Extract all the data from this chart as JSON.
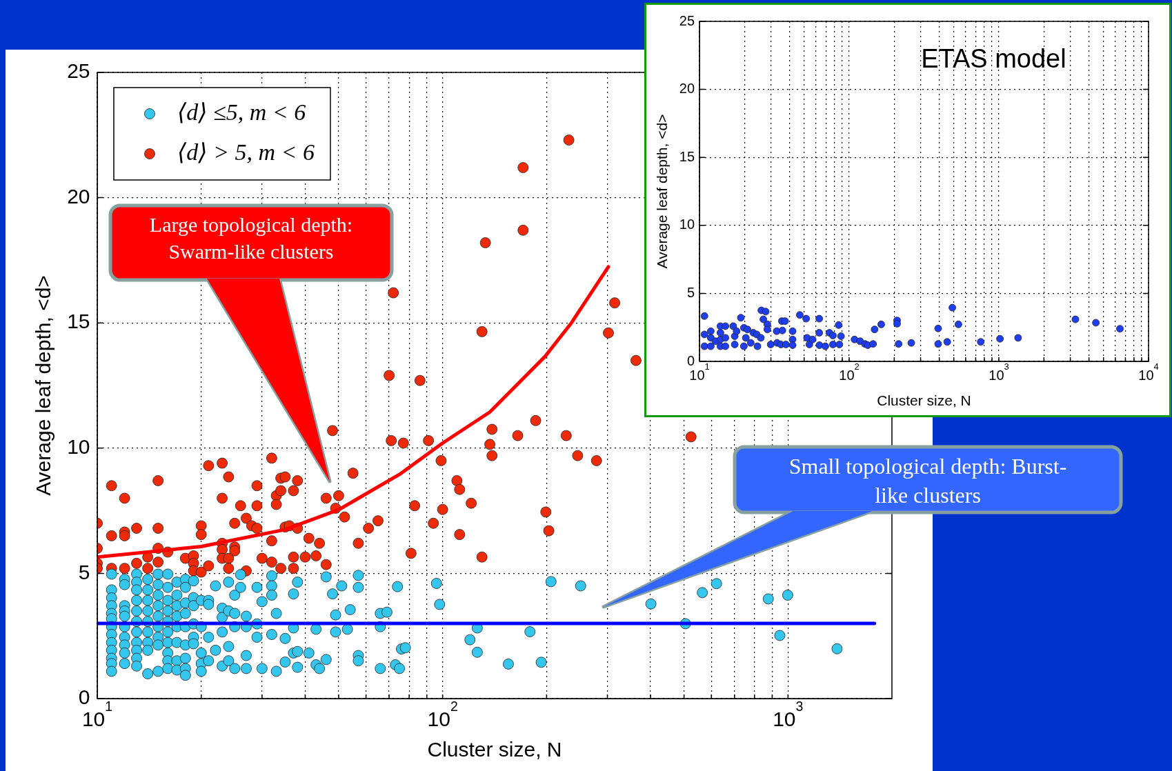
{
  "chart_data": [
    {
      "type": "scatter",
      "xlabel": "Cluster size, N",
      "ylabel": "Average leaf depth, <d>",
      "log": "x",
      "grid": true,
      "legend": "top left",
      "marker": "circle",
      "xlim": [
        10,
        2000
      ],
      "ylim": [
        0,
        25
      ],
      "xticks": [
        {
          "value": 10,
          "label": "10$^{1}$"
        },
        {
          "value": 20,
          "label": null
        },
        {
          "value": 30,
          "label": null
        },
        {
          "value": 40,
          "label": null
        },
        {
          "value": 50,
          "label": null
        },
        {
          "value": 60,
          "label": null
        },
        {
          "value": 70,
          "label": null
        },
        {
          "value": 80,
          "label": null
        },
        {
          "value": 90,
          "label": null
        },
        {
          "value": 100,
          "label": "10$^{2}$"
        },
        {
          "value": 200,
          "label": null
        },
        {
          "value": 300,
          "label": null
        },
        {
          "value": 400,
          "label": null
        },
        {
          "value": 500,
          "label": null
        },
        {
          "value": 600,
          "label": null
        },
        {
          "value": 700,
          "label": null
        },
        {
          "value": 800,
          "label": null
        },
        {
          "value": 900,
          "label": null
        },
        {
          "value": 1000,
          "label": "10$^{3}$"
        }
      ],
      "yticks": [
        0,
        5,
        10,
        15,
        20,
        25
      ],
      "annotations": [
        "Large topological depth: Swarm-like clusters",
        "Small topological depth: Burst-like clusters"
      ],
      "series": [
        {
          "name": "⟨d⟩ ≤5, m < 6",
          "color": "#35c6ee",
          "x": [
            11,
            11,
            11,
            11,
            11,
            11,
            11,
            11,
            11,
            11,
            11,
            11,
            11,
            12,
            12,
            12,
            12,
            12,
            12,
            12,
            12,
            12,
            12,
            13,
            13,
            13,
            13,
            13,
            13,
            13,
            13,
            13,
            13,
            13,
            14,
            14,
            14,
            14,
            14,
            14,
            14,
            14,
            14,
            15,
            15,
            15,
            15,
            15,
            15,
            15,
            15,
            15,
            16,
            16,
            16,
            16,
            16,
            16,
            16,
            16,
            16,
            16,
            17,
            17,
            17,
            17,
            17,
            17,
            17,
            17,
            18,
            18,
            18,
            18,
            18,
            18,
            18,
            18,
            18,
            19,
            19,
            19,
            19,
            19,
            19,
            20,
            20,
            20,
            20,
            20,
            21,
            21,
            21,
            21,
            22,
            22,
            23,
            23,
            23,
            23,
            24,
            24,
            24,
            24,
            25,
            25,
            25,
            25,
            26,
            26,
            27,
            27,
            27,
            27,
            29,
            29,
            29,
            30,
            30,
            32,
            32,
            32,
            32,
            33,
            33,
            35,
            35,
            37,
            37,
            37,
            38,
            38,
            38,
            41,
            43,
            43,
            44,
            46,
            46,
            48,
            49,
            49,
            51,
            53,
            54,
            57,
            57,
            57,
            57,
            66,
            66,
            66,
            69,
            73,
            74,
            75,
            76,
            78,
            96,
            98,
            120,
            126,
            126,
            155,
            179,
            193,
            206,
            251,
            401,
            505,
            565,
            621,
            877,
            947,
            998,
            1387
          ],
          "values": [
            4.97,
            4.34,
            4.02,
            3.71,
            3.4,
            3.19,
            2.87,
            2.56,
            2.24,
            1.93,
            1.61,
            1.4,
            1.09,
            4.76,
            4.55,
            3.71,
            3.5,
            3.29,
            2.87,
            2.45,
            2.14,
            1.82,
            1.4,
            4.97,
            4.65,
            4.34,
            3.92,
            3.5,
            3.08,
            2.66,
            2.24,
            1.93,
            1.61,
            1.3,
            4.76,
            4.34,
            3.92,
            3.5,
            3.08,
            2.66,
            2.24,
            1.93,
            0.99,
            4.97,
            4.55,
            4.13,
            3.71,
            3.29,
            2.87,
            2.45,
            2.14,
            1.09,
            4.97,
            4.44,
            3.92,
            3.5,
            3.08,
            2.66,
            2.24,
            1.82,
            1.51,
            1.2,
            4.65,
            4.13,
            3.71,
            3.29,
            2.87,
            2.24,
            1.51,
            1.14,
            4.76,
            4.44,
            3.82,
            3.4,
            2.87,
            2.14,
            1.61,
            1.2,
            0.93,
            4.7,
            4.03,
            3.71,
            2.98,
            2.45,
            2.19,
            3.92,
            2.87,
            1.82,
            1.4,
            1.09,
            3.92,
            3.76,
            2.45,
            1.51,
            4.5,
            1.93,
            3.61,
            3.24,
            2.66,
            1.3,
            4.65,
            3.5,
            2.08,
            1.51,
            4.13,
            3.4,
            2.87,
            1.2,
            4.95,
            4.44,
            3.29,
            2.87,
            1.72,
            1.2,
            4.44,
            2.98,
            2.45,
            3.87,
            1.2,
            4.9,
            4.5,
            4.13,
            2.56,
            3.4,
            1.09,
            2.4,
            1.46,
            4.18,
            2.82,
            1.82,
            4.65,
            1.88,
            1.25,
            1.82,
            2.77,
            1.35,
            1.2,
            4.86,
            1.56,
            4.18,
            3.34,
            2.66,
            4.5,
            2.77,
            3.55,
            4.92,
            4.44,
            1.72,
            1.51,
            3.4,
            2.87,
            1.2,
            3.45,
            1.35,
            4.47,
            1.2,
            1.98,
            2.03,
            4.6,
            3.76,
            2.35,
            2.82,
            1.85,
            1.38,
            2.67,
            1.45,
            4.67,
            4.5,
            3.78,
            2.99,
            4.23,
            4.59,
            3.98,
            2.52,
            4.13,
            1.99
          ]
        },
        {
          "name": "⟨d⟩ > 5, m < 6",
          "color": "#ee2a08",
          "x": [
            11,
            12,
            15,
            21,
            23,
            24,
            32,
            29,
            34,
            35,
            38,
            23,
            26,
            29,
            33,
            34,
            37,
            33,
            55,
            46,
            50,
            49,
            52,
            10,
            11,
            12,
            12,
            13,
            15,
            20,
            20,
            25,
            27,
            28,
            29,
            35,
            36,
            38,
            23,
            23,
            25,
            25,
            32,
            41,
            44,
            10,
            10,
            10,
            11,
            12,
            13,
            14,
            14,
            15,
            15,
            16,
            18,
            19,
            19,
            19,
            20,
            21,
            23,
            24,
            24,
            27,
            30,
            32,
            34,
            37,
            37,
            40,
            43,
            46,
            57,
            61,
            65,
            81,
            83,
            94,
            100,
            110,
            112,
            121,
            112,
            130,
            99,
            139,
            232,
            171,
            171,
            133,
            130,
            302,
            315,
            363,
            72,
            70,
            86,
            48,
            71,
            77,
            91,
            139,
            137,
            165,
            186,
            228,
            246,
            279,
            524,
            199,
            203
          ],
          "values": [
            8.5,
            8.0,
            8.7,
            9.3,
            9.4,
            8.85,
            9.6,
            8.5,
            8.8,
            8.85,
            8.7,
            8.0,
            7.7,
            7.7,
            8.1,
            8.3,
            8.3,
            7.75,
            9.0,
            8.0,
            8.1,
            7.6,
            7.25,
            7.0,
            6.5,
            6.65,
            6.5,
            6.8,
            6.8,
            6.9,
            6.55,
            7.0,
            7.2,
            6.9,
            6.8,
            6.85,
            6.9,
            6.8,
            6.2,
            5.95,
            6.05,
            5.9,
            6.3,
            6.4,
            6.2,
            6.0,
            5.4,
            5.2,
            5.2,
            5.2,
            5.4,
            5.65,
            5.2,
            6.0,
            5.45,
            5.85,
            5.6,
            5.7,
            5.4,
            5.1,
            5.05,
            5.3,
            5.6,
            5.6,
            5.2,
            5.1,
            5.6,
            5.45,
            5.2,
            5.65,
            5.2,
            5.65,
            5.7,
            5.35,
            6.2,
            6.8,
            7.1,
            5.8,
            7.7,
            7.0,
            7.55,
            8.7,
            8.35,
            7.8,
            6.55,
            5.65,
            9.5,
            9.7,
            22.3,
            21.2,
            18.7,
            18.2,
            14.65,
            14.6,
            15.8,
            13.5,
            16.2,
            12.9,
            12.7,
            10.7,
            10.3,
            10.2,
            10.3,
            10.75,
            10.15,
            10.5,
            11.1,
            10.5,
            9.7,
            9.5,
            10.45,
            7.45,
            6.7
          ]
        },
        {
          "type": "line",
          "marker": "none",
          "color": "#ff0000",
          "x": [
            10,
            20,
            35,
            50,
            75,
            100,
            137,
            198,
            236,
            302
          ],
          "values": [
            5.65,
            6.07,
            6.75,
            7.54,
            8.95,
            10.2,
            11.44,
            13.66,
            15.0,
            17.24
          ]
        },
        {
          "type": "line",
          "marker": "none",
          "color": "#0000ff",
          "x": [
            10,
            1780
          ],
          "values": [
            3,
            3
          ]
        }
      ]
    },
    {
      "type": "scatter",
      "title": "ETAS model",
      "xlabel": "Cluster size, N",
      "ylabel": "Average leaf depth, <d>",
      "log": "x",
      "grid": true,
      "marker": "circle",
      "xlim": [
        10,
        10000
      ],
      "ylim": [
        0,
        25
      ],
      "xticks": [
        {
          "value": 10,
          "label": "10$^{1}$"
        },
        {
          "value": 20,
          "label": null
        },
        {
          "value": 30,
          "label": null
        },
        {
          "value": 40,
          "label": null
        },
        {
          "value": 50,
          "label": null
        },
        {
          "value": 60,
          "label": null
        },
        {
          "value": 70,
          "label": null
        },
        {
          "value": 80,
          "label": null
        },
        {
          "value": 90,
          "label": null
        },
        {
          "value": 100,
          "label": "10$^{2}$"
        },
        {
          "value": 200,
          "label": null
        },
        {
          "value": 300,
          "label": null
        },
        {
          "value": 400,
          "label": null
        },
        {
          "value": 500,
          "label": null
        },
        {
          "value": 600,
          "label": null
        },
        {
          "value": 700,
          "label": null
        },
        {
          "value": 800,
          "label": null
        },
        {
          "value": 900,
          "label": null
        },
        {
          "value": 1000,
          "label": "10$^{3}$"
        },
        {
          "value": 2000,
          "label": null
        },
        {
          "value": 3000,
          "label": null
        },
        {
          "value": 4000,
          "label": null
        },
        {
          "value": 5000,
          "label": null
        },
        {
          "value": 6000,
          "label": null
        },
        {
          "value": 7000,
          "label": null
        },
        {
          "value": 8000,
          "label": null
        },
        {
          "value": 9000,
          "label": null
        },
        {
          "value": 10000,
          "label": "10$^{4}$"
        }
      ],
      "yticks": [
        0,
        5,
        10,
        15,
        20,
        25
      ],
      "series": [
        {
          "color": "#1f3ef0",
          "x": [
            10.8,
            10.8,
            10.8,
            11.9,
            11.9,
            11.9,
            12.8,
            13.8,
            13.8,
            13.8,
            13.8,
            14.9,
            14.9,
            14.9,
            16.8,
            17.2,
            17.2,
            17.7,
            18.9,
            19.8,
            20.4,
            19.8,
            20.9,
            22,
            22.9,
            24.4,
            24.1,
            25.7,
            25.9,
            26.7,
            27.7,
            28.4,
            28.4,
            29.9,
            32.8,
            33,
            35,
            35.5,
            35.8,
            37.3,
            37.8,
            41.9,
            41.9,
            41.9,
            46.8,
            51.6,
            52.3,
            54.2,
            57,
            63.1,
            63.1,
            63.3,
            69.3,
            73.8,
            77.9,
            77.9,
            85.1,
            86,
            88.2,
            108.6,
            118.3,
            127.6,
            133.2,
            144.4,
            147.9,
            163.7,
            209,
            209,
            214,
            260,
            393,
            393,
            452,
            489,
            537,
            757,
            1017,
            1344,
            3247,
            4446,
            6440
          ],
          "values": [
            3.33,
            1.98,
            1.11,
            2.22,
            1.73,
            1.11,
            1.48,
            2.59,
            2.1,
            1.61,
            1.11,
            2.59,
            1.73,
            1.11,
            2.59,
            1.85,
            1.24,
            2.22,
            3.21,
            2.47,
            1.73,
            1.11,
            2.35,
            1.36,
            2.1,
            1.11,
            1.98,
            1.73,
            3.75,
            3.09,
            3.66,
            2.72,
            2.35,
            1.24,
            2.22,
            1.36,
            1.24,
            2.96,
            2.27,
            2.96,
            1.24,
            2.22,
            1.61,
            1.19,
            3.41,
            3.14,
            1.73,
            1.24,
            1.61,
            3.14,
            2.1,
            1.19,
            1.11,
            2.1,
            1.9,
            1.24,
            2.67,
            1.24,
            1.85,
            1.61,
            1.48,
            1.28,
            1.19,
            1.28,
            2.35,
            2.72,
            3.01,
            2.77,
            1.28,
            1.36,
            2.42,
            1.28,
            1.43,
            3.95,
            2.72,
            1.43,
            1.66,
            1.73,
            3.09,
            2.84,
            2.4
          ]
        }
      ]
    }
  ]
}
